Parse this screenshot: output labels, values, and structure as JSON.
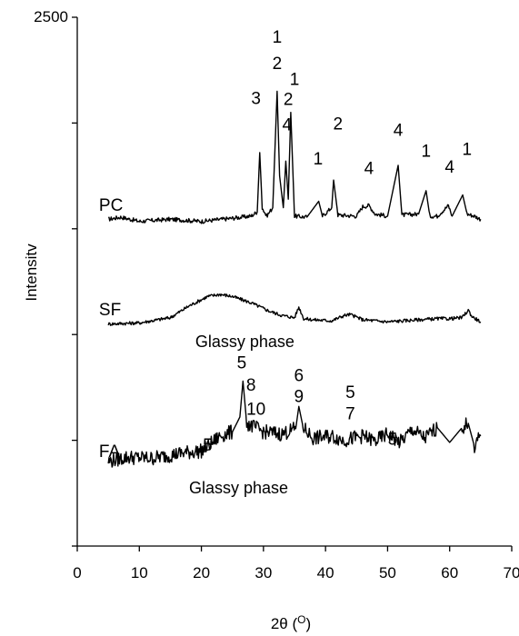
{
  "chart_data": {
    "type": "line",
    "title": "",
    "xlabel": "2θ (O)",
    "ylabel": "Intensitv",
    "xlim": [
      0,
      70
    ],
    "ylim": [
      0,
      2500
    ],
    "x_ticks": [
      "0",
      "10",
      "20",
      "30",
      "40",
      "50",
      "60",
      "70"
    ],
    "y_ticks": [
      "2500"
    ],
    "grid": false,
    "legend": "none",
    "line_color": "#000000",
    "series": [
      {
        "name": "PC",
        "x": [
          5,
          7,
          10,
          15,
          20,
          25,
          28,
          29,
          29.4,
          29.8,
          30.5,
          31.5,
          32.2,
          32.6,
          33.2,
          33.6,
          34,
          34.4,
          35,
          37,
          38.9,
          39.5,
          41,
          41.3,
          42,
          45,
          46,
          47,
          48,
          50,
          51.7,
          52.3,
          55,
          56.2,
          56.8,
          58,
          59.8,
          60.4,
          62.1,
          62.8,
          64,
          65
        ],
        "y": [
          1545,
          1555,
          1535,
          1545,
          1535,
          1550,
          1560,
          1580,
          1860,
          1600,
          1560,
          1600,
          2150,
          1750,
          1600,
          1820,
          1640,
          2050,
          1560,
          1555,
          1630,
          1560,
          1600,
          1730,
          1565,
          1560,
          1605,
          1610,
          1570,
          1560,
          1800,
          1565,
          1570,
          1680,
          1560,
          1560,
          1610,
          1560,
          1660,
          1570,
          1560,
          1545
        ]
      },
      {
        "name": "SF",
        "x": [
          5,
          10,
          15,
          18,
          21,
          23,
          25,
          28,
          31,
          33,
          35,
          35.7,
          36.5,
          38,
          41,
          43,
          44,
          46,
          50,
          55,
          58,
          60,
          62,
          63,
          63.6,
          65
        ],
        "y": [
          1050,
          1055,
          1080,
          1135,
          1180,
          1190,
          1180,
          1150,
          1110,
          1090,
          1080,
          1130,
          1075,
          1070,
          1065,
          1090,
          1095,
          1070,
          1060,
          1070,
          1075,
          1075,
          1080,
          1115,
          1085,
          1060
        ]
      },
      {
        "name": "FA",
        "x": [
          5,
          8,
          12,
          17,
          20,
          21,
          23,
          25,
          26.2,
          26.7,
          27.3,
          30,
          33,
          35.2,
          35.7,
          36.4,
          38,
          41,
          43,
          46,
          48,
          50,
          52,
          54,
          56,
          58,
          60,
          62,
          63,
          64,
          65
        ],
        "y": [
          400,
          420,
          415,
          440,
          450,
          470,
          520,
          540,
          610,
          780,
          580,
          540,
          530,
          555,
          660,
          560,
          510,
          520,
          500,
          520,
          495,
          530,
          490,
          550,
          510,
          560,
          490,
          560,
          580,
          470,
          520
        ]
      }
    ],
    "series_labels": [
      {
        "text": "PC",
        "x": 3.5,
        "y": 1585
      },
      {
        "text": "SF",
        "x": 3.5,
        "y": 1090
      },
      {
        "text": "FA",
        "x": 3.5,
        "y": 420
      }
    ],
    "peak_labels": [
      {
        "text": "1",
        "x": 32.2,
        "y": 2380
      },
      {
        "text": "2",
        "x": 32.2,
        "y": 2255
      },
      {
        "text": "1",
        "x": 35.0,
        "y": 2180
      },
      {
        "text": "2",
        "x": 34.0,
        "y": 2085
      },
      {
        "text": "4",
        "x": 33.8,
        "y": 1965
      },
      {
        "text": "3",
        "x": 28.8,
        "y": 2090
      },
      {
        "text": "2",
        "x": 42.0,
        "y": 1970
      },
      {
        "text": "1",
        "x": 38.8,
        "y": 1805
      },
      {
        "text": "4",
        "x": 51.7,
        "y": 1940
      },
      {
        "text": "4",
        "x": 47.0,
        "y": 1760
      },
      {
        "text": "1",
        "x": 56.2,
        "y": 1840
      },
      {
        "text": "4",
        "x": 60.0,
        "y": 1765
      },
      {
        "text": "1",
        "x": 62.8,
        "y": 1850
      },
      {
        "text": "5",
        "x": 26.5,
        "y": 840
      },
      {
        "text": "8",
        "x": 28.0,
        "y": 735
      },
      {
        "text": "10",
        "x": 28.8,
        "y": 620
      },
      {
        "text": "6",
        "x": 35.7,
        "y": 780
      },
      {
        "text": "9",
        "x": 35.7,
        "y": 680
      },
      {
        "text": "5",
        "x": 21.0,
        "y": 450
      },
      {
        "text": "5",
        "x": 44.0,
        "y": 700
      },
      {
        "text": "7",
        "x": 44.0,
        "y": 600
      },
      {
        "text": "5",
        "x": 50.8,
        "y": 480
      }
    ],
    "annotations": [
      {
        "text": "Glassy phase",
        "x": 27.0,
        "y": 940
      },
      {
        "text": "Glassy phase",
        "x": 26.0,
        "y": 250
      }
    ]
  }
}
